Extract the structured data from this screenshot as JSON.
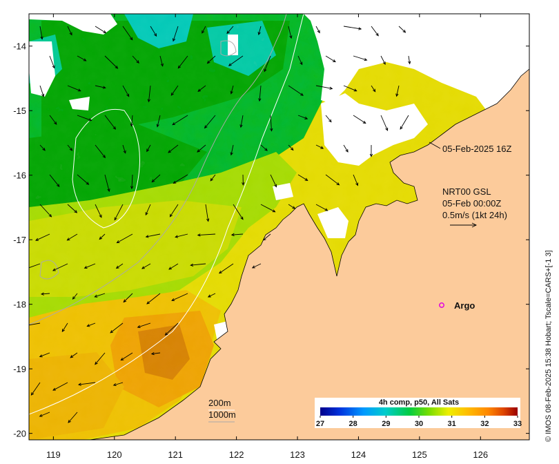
{
  "map": {
    "lon_range": [
      118.6,
      126.8
    ],
    "lat_range": [
      -20.1,
      -13.5
    ],
    "x_ticks": [
      "119",
      "120",
      "121",
      "122",
      "123",
      "124",
      "125",
      "126"
    ],
    "y_ticks": [
      "-14",
      "-15",
      "-16",
      "-17",
      "-18",
      "-19",
      "-20"
    ]
  },
  "annotations": {
    "timestamp": "05-Feb-2025 16Z",
    "current_source": "NRT00 GSL",
    "current_time": "05-Feb 00:00Z",
    "current_scale": "0.5m/s (1kt 24h)",
    "argo_label": "Argo",
    "contour_200": "200m",
    "contour_1000": "1000m"
  },
  "colorbar": {
    "title": "4h comp, p50, All Sats",
    "ticks": [
      "27",
      "28",
      "29",
      "30",
      "31",
      "32",
      "33"
    ],
    "range": [
      27,
      33
    ]
  },
  "credit": "© IMOS 08-Feb-2025 15:38 Hobart; Tscale=CARS+[-1 3]",
  "colors": {
    "land": "#fccb9b",
    "cloud": "#ffffff",
    "argo": "#e000e0"
  }
}
